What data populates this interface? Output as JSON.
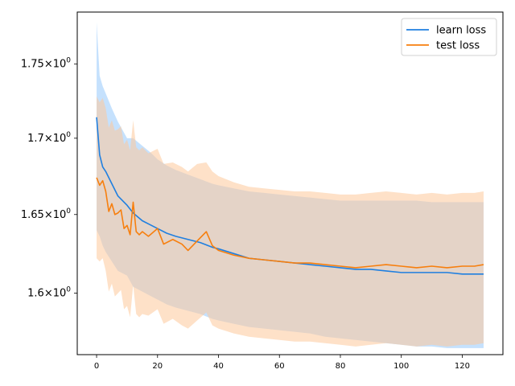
{
  "chart_data": {
    "type": "line",
    "title": "",
    "xlabel": "",
    "ylabel": "",
    "yscale": "log",
    "xlim": [
      -6.35,
      133.35
    ],
    "ylim": [
      1.562,
      1.786
    ],
    "grid": false,
    "legend_position": "top-right",
    "x_ticks": [
      0,
      20,
      40,
      60,
      80,
      100,
      120
    ],
    "x_tick_labels": [
      "0",
      "20",
      "40",
      "60",
      "80",
      "100",
      "120"
    ],
    "y_ticks": [
      1.6,
      1.65,
      1.7,
      1.75
    ],
    "y_tick_labels": [
      {
        "base": "1.6×10",
        "exp": "0"
      },
      {
        "base": "1.65×10",
        "exp": "0"
      },
      {
        "base": "1.7×10",
        "exp": "0"
      },
      {
        "base": "1.75×10",
        "exp": "0"
      }
    ],
    "series": [
      {
        "name": "learn loss",
        "color": "#1f7fe0",
        "band_color": "#9fcdfc",
        "x": [
          0,
          1,
          2,
          3,
          5,
          7,
          10,
          12,
          15,
          18,
          20,
          23,
          26,
          30,
          34,
          38,
          40,
          45,
          50,
          55,
          60,
          65,
          70,
          75,
          80,
          85,
          90,
          95,
          100,
          105,
          110,
          115,
          120,
          124,
          127
        ],
        "mean": [
          1.714,
          1.689,
          1.681,
          1.678,
          1.67,
          1.662,
          1.656,
          1.651,
          1.646,
          1.643,
          1.641,
          1.638,
          1.636,
          1.634,
          1.632,
          1.629,
          1.628,
          1.625,
          1.622,
          1.621,
          1.62,
          1.619,
          1.618,
          1.617,
          1.616,
          1.615,
          1.615,
          1.614,
          1.613,
          1.613,
          1.613,
          1.613,
          1.612,
          1.612,
          1.612
        ],
        "upper": [
          1.779,
          1.742,
          1.735,
          1.73,
          1.72,
          1.711,
          1.7,
          1.7,
          1.695,
          1.69,
          1.686,
          1.682,
          1.679,
          1.676,
          1.673,
          1.67,
          1.669,
          1.667,
          1.665,
          1.664,
          1.663,
          1.662,
          1.661,
          1.66,
          1.659,
          1.659,
          1.659,
          1.659,
          1.659,
          1.659,
          1.658,
          1.658,
          1.658,
          1.658,
          1.658
        ],
        "lower": [
          1.64,
          1.636,
          1.63,
          1.626,
          1.62,
          1.614,
          1.611,
          1.604,
          1.601,
          1.598,
          1.596,
          1.593,
          1.591,
          1.589,
          1.587,
          1.584,
          1.583,
          1.581,
          1.579,
          1.578,
          1.577,
          1.576,
          1.575,
          1.573,
          1.572,
          1.571,
          1.57,
          1.569,
          1.568,
          1.567,
          1.567,
          1.566,
          1.566,
          1.566,
          1.566
        ]
      },
      {
        "name": "test loss",
        "color": "#f77f0e",
        "band_color": "#fdc89a",
        "x": [
          0,
          1,
          2,
          3,
          4,
          5,
          6,
          7,
          8,
          9,
          10,
          11,
          12,
          13,
          14,
          15,
          17,
          20,
          22,
          25,
          28,
          30,
          33,
          36,
          38,
          40,
          45,
          50,
          55,
          60,
          65,
          70,
          75,
          80,
          85,
          90,
          95,
          100,
          105,
          110,
          115,
          120,
          124,
          127
        ],
        "mean": [
          1.674,
          1.669,
          1.672,
          1.665,
          1.652,
          1.657,
          1.65,
          1.651,
          1.653,
          1.641,
          1.643,
          1.637,
          1.658,
          1.639,
          1.637,
          1.639,
          1.636,
          1.641,
          1.631,
          1.634,
          1.631,
          1.627,
          1.633,
          1.639,
          1.63,
          1.627,
          1.624,
          1.622,
          1.621,
          1.62,
          1.619,
          1.619,
          1.618,
          1.617,
          1.616,
          1.617,
          1.618,
          1.617,
          1.616,
          1.617,
          1.616,
          1.617,
          1.617,
          1.618
        ],
        "upper": [
          1.728,
          1.724,
          1.727,
          1.72,
          1.707,
          1.712,
          1.705,
          1.706,
          1.708,
          1.696,
          1.699,
          1.692,
          1.712,
          1.694,
          1.692,
          1.694,
          1.69,
          1.693,
          1.683,
          1.684,
          1.681,
          1.678,
          1.683,
          1.684,
          1.678,
          1.675,
          1.671,
          1.668,
          1.667,
          1.666,
          1.665,
          1.665,
          1.664,
          1.663,
          1.663,
          1.664,
          1.665,
          1.664,
          1.663,
          1.664,
          1.663,
          1.664,
          1.664,
          1.665
        ],
        "lower": [
          1.622,
          1.62,
          1.622,
          1.614,
          1.601,
          1.606,
          1.598,
          1.6,
          1.602,
          1.59,
          1.592,
          1.585,
          1.605,
          1.587,
          1.585,
          1.587,
          1.586,
          1.59,
          1.581,
          1.584,
          1.58,
          1.578,
          1.583,
          1.588,
          1.58,
          1.578,
          1.575,
          1.573,
          1.572,
          1.571,
          1.57,
          1.57,
          1.569,
          1.568,
          1.567,
          1.568,
          1.569,
          1.568,
          1.567,
          1.568,
          1.567,
          1.568,
          1.568,
          1.569
        ]
      }
    ]
  }
}
